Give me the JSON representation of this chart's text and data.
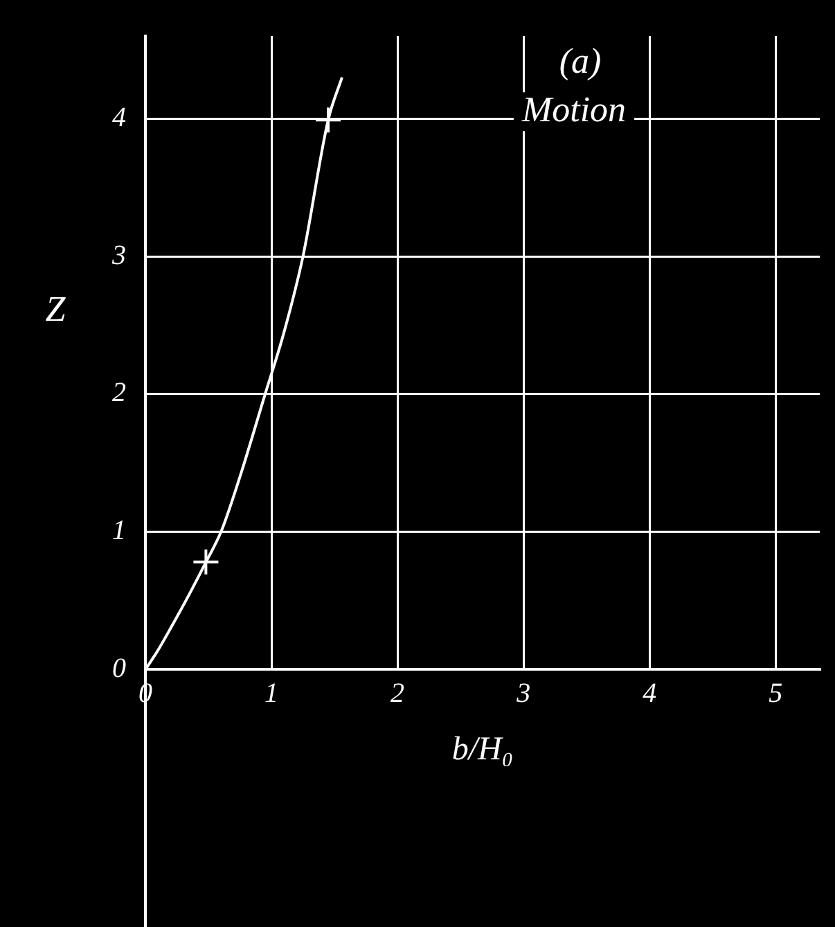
{
  "chart_data": {
    "type": "line",
    "title": "(a)",
    "xlabel": "b/H₀",
    "ylabel": "Z",
    "annotations": [
      "Motion"
    ],
    "xlim": [
      0,
      5.35
    ],
    "xticks": [
      0,
      1,
      2,
      3,
      4,
      5
    ],
    "ylim": [
      0,
      4.6
    ],
    "yticks": [
      0,
      1,
      2,
      3,
      4
    ],
    "grid": true,
    "legend": false,
    "series": [
      {
        "color": "#ffffff",
        "marker": "none",
        "x": [
          0,
          0.1,
          0.2,
          0.35,
          0.48,
          0.6,
          0.75,
          0.95,
          1.1,
          1.25,
          1.45,
          1.56
        ],
        "values": [
          0,
          0.14,
          0.3,
          0.55,
          0.78,
          1.0,
          1.4,
          2.0,
          2.45,
          3.0,
          3.99,
          4.3
        ]
      },
      {
        "type": "scatter",
        "color": "#ffffff",
        "marker": "cross",
        "x": [
          0.48,
          1.45
        ],
        "values": [
          0.78,
          3.99
        ]
      }
    ]
  }
}
